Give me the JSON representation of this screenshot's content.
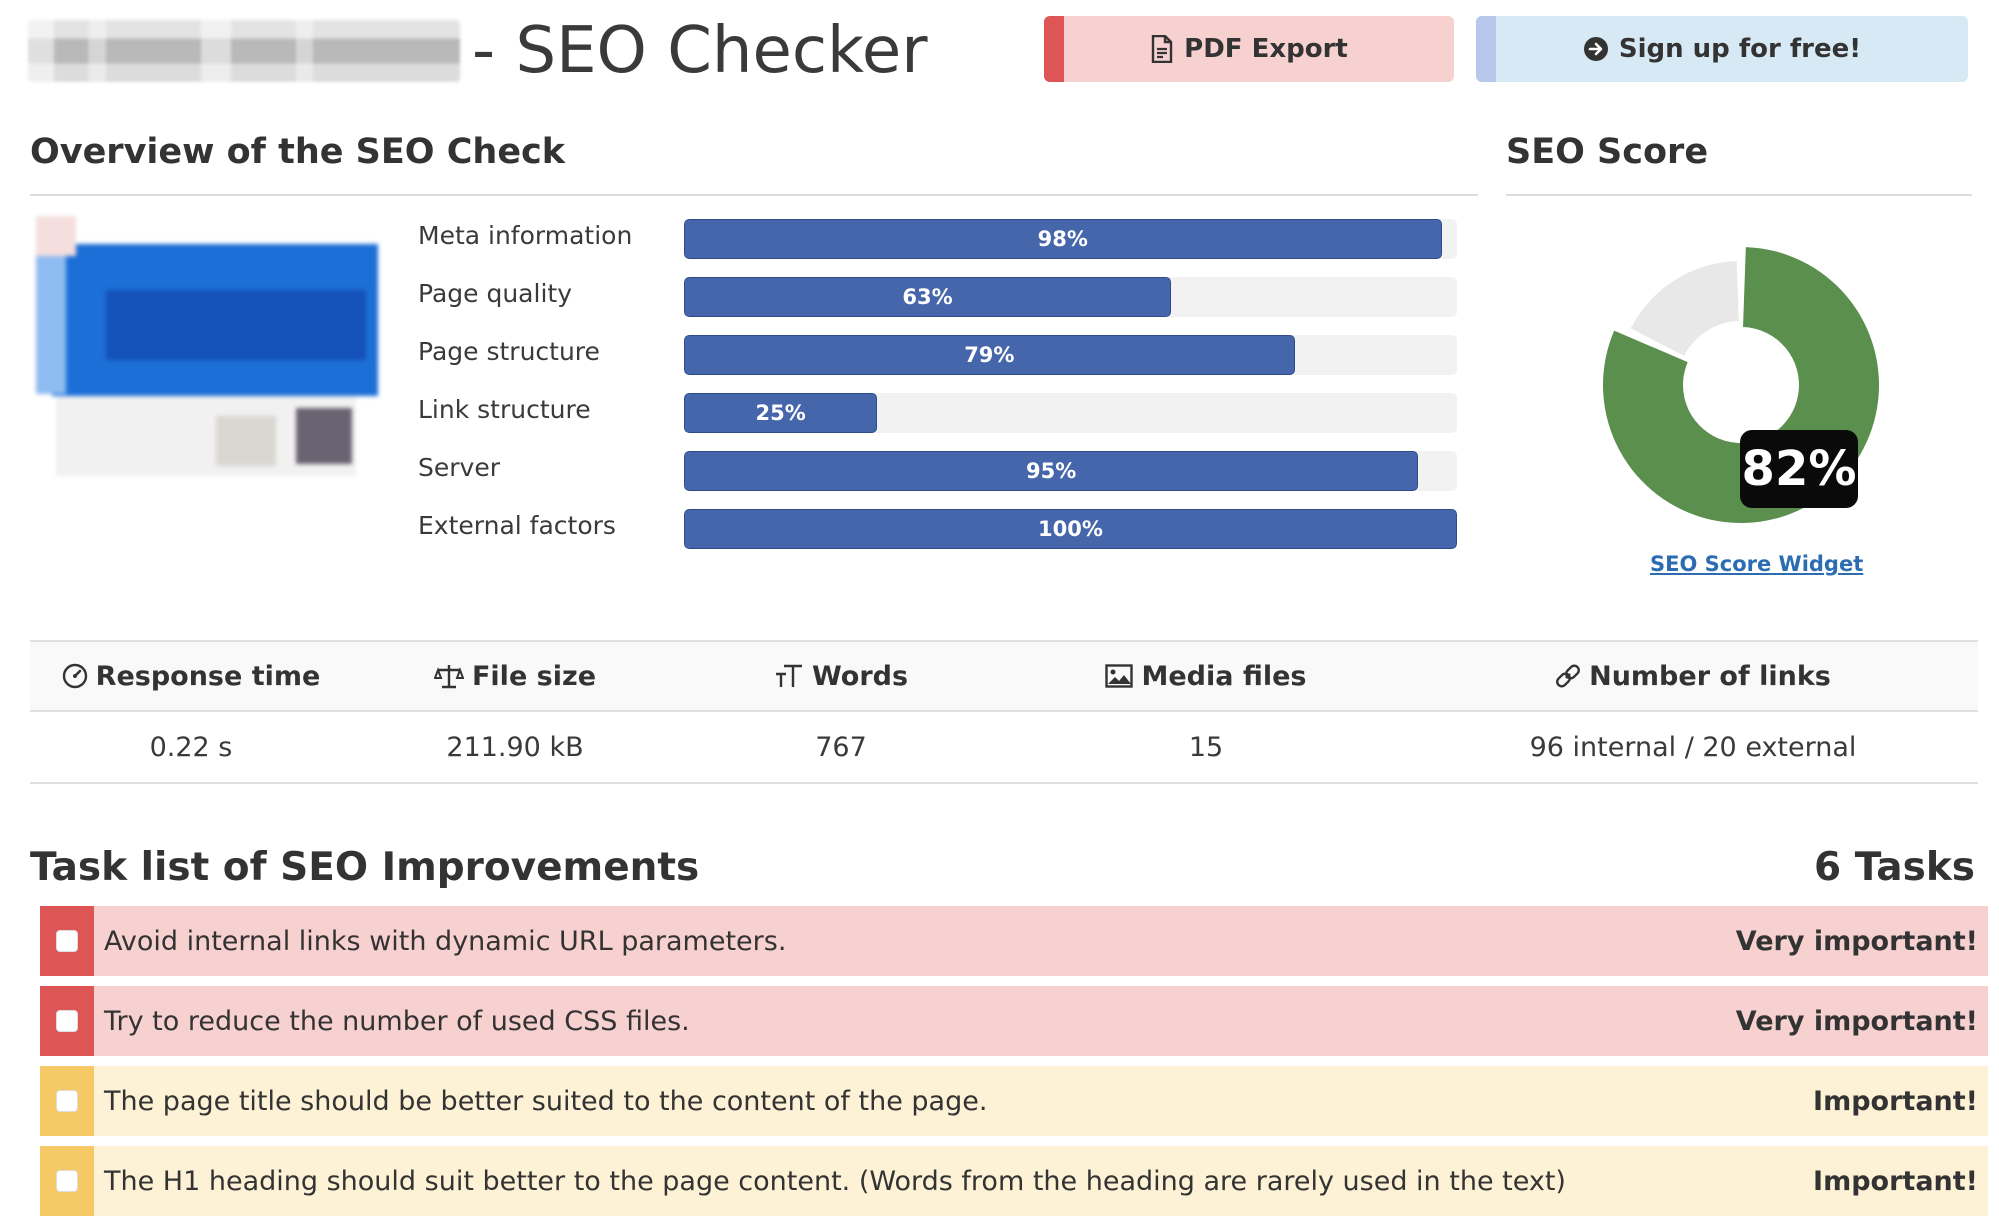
{
  "header": {
    "title": "- SEO Checker",
    "pdf_button": "PDF Export",
    "signup_button": "Sign up for free!"
  },
  "overview": {
    "heading": "Overview of the SEO Check",
    "metrics": [
      {
        "label": "Meta information",
        "value": 98,
        "display": "98%"
      },
      {
        "label": "Page quality",
        "value": 63,
        "display": "63%"
      },
      {
        "label": "Page structure",
        "value": 79,
        "display": "79%"
      },
      {
        "label": "Link structure",
        "value": 25,
        "display": "25%"
      },
      {
        "label": "Server",
        "value": 95,
        "display": "95%"
      },
      {
        "label": "External factors",
        "value": 100,
        "display": "100%"
      }
    ]
  },
  "score": {
    "heading": "SEO Score",
    "value": 82,
    "display": "82%",
    "widget_link": "SEO Score Widget",
    "colors": {
      "score": "#5b8f4e",
      "rest": "#e8e8e8"
    }
  },
  "stats": {
    "headers": [
      "Response time",
      "File size",
      "Words",
      "Media files",
      "Number of links"
    ],
    "icons": [
      "gauge-icon",
      "scale-icon",
      "text-size-icon",
      "image-icon",
      "link-icon"
    ],
    "values": [
      "0.22 s",
      "211.90 kB",
      "767",
      "15",
      "96 internal / 20 external"
    ]
  },
  "tasks": {
    "heading": "Task list of SEO Improvements",
    "count": "6 Tasks",
    "items": [
      {
        "text": "Avoid internal links with dynamic URL parameters.",
        "importance": "Very important!",
        "level": "red"
      },
      {
        "text": "Try to reduce the number of used CSS files.",
        "importance": "Very important!",
        "level": "red"
      },
      {
        "text": "The page title should be better suited to the content of the page.",
        "importance": "Important!",
        "level": "yellow"
      },
      {
        "text": "The H1 heading should suit better to the page content. (Words from the heading are rarely used in the text)",
        "importance": "Important!",
        "level": "yellow"
      }
    ]
  },
  "colors": {
    "bar_fill": "#4666ab",
    "very_important": "#dd5555",
    "important": "#f5c966"
  }
}
